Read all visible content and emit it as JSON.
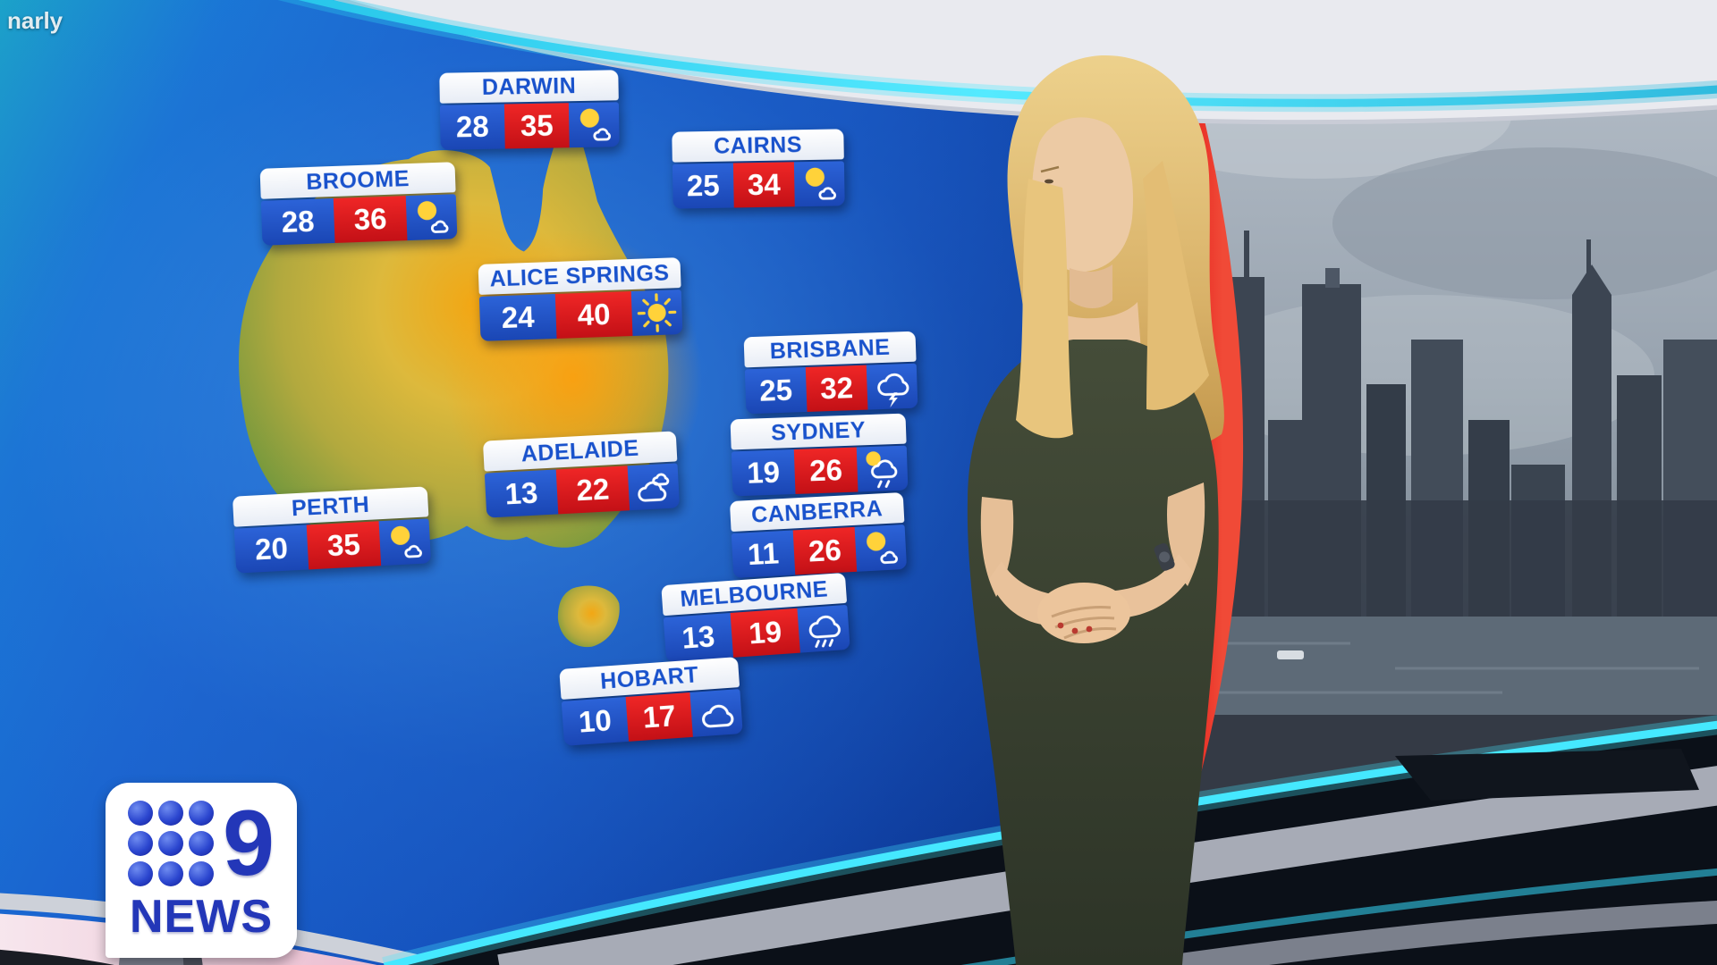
{
  "broadcast": {
    "caption_fragment": "narly",
    "channel_logo": {
      "number": "9",
      "label": "NEWS"
    }
  },
  "weather_cards": [
    {
      "city": "DARWIN",
      "min": "28",
      "max": "35",
      "icon": "sun-cloud-icon"
    },
    {
      "city": "BROOME",
      "min": "28",
      "max": "36",
      "icon": "sun-cloud-icon"
    },
    {
      "city": "CAIRNS",
      "min": "25",
      "max": "34",
      "icon": "sun-cloud-icon"
    },
    {
      "city": "ALICE SPRINGS",
      "min": "24",
      "max": "40",
      "icon": "sun-icon"
    },
    {
      "city": "BRISBANE",
      "min": "25",
      "max": "32",
      "icon": "storm-icon"
    },
    {
      "city": "SYDNEY",
      "min": "19",
      "max": "26",
      "icon": "sun-shower-icon"
    },
    {
      "city": "ADELAIDE",
      "min": "13",
      "max": "22",
      "icon": "clouds-icon"
    },
    {
      "city": "PERTH",
      "min": "20",
      "max": "35",
      "icon": "sun-cloud-icon"
    },
    {
      "city": "CANBERRA",
      "min": "11",
      "max": "26",
      "icon": "sun-cloud-icon"
    },
    {
      "city": "MELBOURNE",
      "min": "13",
      "max": "19",
      "icon": "rain-icon"
    },
    {
      "city": "HOBART",
      "min": "10",
      "max": "17",
      "icon": "cloud-icon"
    }
  ],
  "colors": {
    "card_min_blue": "#1e4fc6",
    "card_max_red": "#df1a22",
    "card_header_white": "#f2f5fa",
    "city_text_blue": "#1952cc",
    "sun_yellow": "#ffd23a",
    "led_cyan": "#45e8ff",
    "wall_edge_red": "#e01a22"
  }
}
